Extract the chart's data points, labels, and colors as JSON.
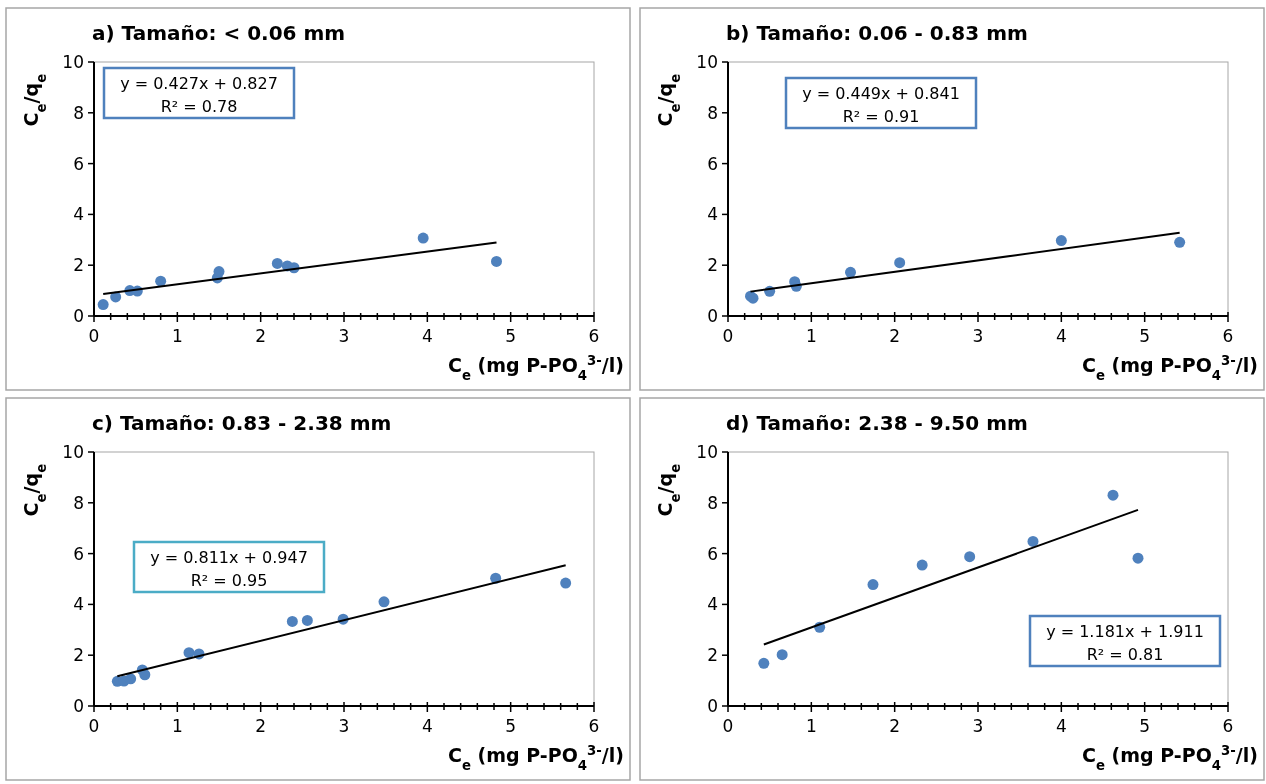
{
  "chart_data": [
    {
      "type": "scatter",
      "title": "a) Tamaño: < 0.06 mm",
      "xlabel": "C$_{e}$ (mg P-PO$_{4}$$^{3-}$/l)",
      "ylabel": "C$_{e}$/q$_{e}$",
      "grid": false,
      "xlim": [
        0,
        6
      ],
      "ylim": [
        0,
        10
      ],
      "yticks": [
        0,
        2,
        4,
        6,
        8,
        10
      ],
      "xticks": [
        0,
        {
          "value": 0.2,
          "label": null
        },
        {
          "value": 0.4,
          "label": null
        },
        {
          "value": 0.6,
          "label": null
        },
        {
          "value": 0.8,
          "label": null
        },
        1,
        {
          "value": 1.2,
          "label": null
        },
        {
          "value": 1.4,
          "label": null
        },
        {
          "value": 1.6,
          "label": null
        },
        {
          "value": 1.8,
          "label": null
        },
        2,
        {
          "value": 2.2,
          "label": null
        },
        {
          "value": 2.4,
          "label": null
        },
        {
          "value": 2.6,
          "label": null
        },
        {
          "value": 2.8,
          "label": null
        },
        3,
        {
          "value": 3.2,
          "label": null
        },
        {
          "value": 3.4,
          "label": null
        },
        {
          "value": 3.6,
          "label": null
        },
        {
          "value": 3.8,
          "label": null
        },
        4,
        {
          "value": 4.2,
          "label": null
        },
        {
          "value": 4.4,
          "label": null
        },
        {
          "value": 4.6,
          "label": null
        },
        {
          "value": 4.8,
          "label": null
        },
        5,
        {
          "value": 5.2,
          "label": null
        },
        {
          "value": 5.4,
          "label": null
        },
        {
          "value": 5.6,
          "label": null
        },
        {
          "value": 5.8,
          "label": null
        },
        6
      ],
      "annotations": [
        "y = 0.427x + 0.827",
        "R² = 0.78"
      ],
      "series": [
        {
          "marker": "circle",
          "color": "#4f81bd",
          "x": [
            0.11,
            0.26,
            0.43,
            0.52,
            0.8,
            1.48,
            1.5,
            2.2,
            2.32,
            2.4,
            3.95,
            4.83
          ],
          "values": [
            0.45,
            0.75,
            1.0,
            0.98,
            1.37,
            1.5,
            1.75,
            2.07,
            1.97,
            1.9,
            3.07,
            2.15
          ]
        },
        {
          "type": "line",
          "color": "#000000",
          "x": [
            0.11,
            4.83
          ],
          "values": [
            0.87,
            2.89
          ]
        }
      ]
    },
    {
      "type": "scatter",
      "title": "b) Tamaño: 0.06 - 0.83 mm",
      "xlabel": "C$_{e}$ (mg P-PO$_{4}$$^{3-}$/l)",
      "ylabel": "C$_{e}$/q$_{e}$",
      "grid": false,
      "xlim": [
        0,
        6
      ],
      "ylim": [
        0,
        10
      ],
      "yticks": [
        0,
        2,
        4,
        6,
        8,
        10
      ],
      "xticks": [
        0,
        {
          "value": 0.2,
          "label": null
        },
        {
          "value": 0.4,
          "label": null
        },
        {
          "value": 0.6,
          "label": null
        },
        {
          "value": 0.8,
          "label": null
        },
        1,
        {
          "value": 1.2,
          "label": null
        },
        {
          "value": 1.4,
          "label": null
        },
        {
          "value": 1.6,
          "label": null
        },
        {
          "value": 1.8,
          "label": null
        },
        2,
        {
          "value": 2.2,
          "label": null
        },
        {
          "value": 2.4,
          "label": null
        },
        {
          "value": 2.6,
          "label": null
        },
        {
          "value": 2.8,
          "label": null
        },
        3,
        {
          "value": 3.2,
          "label": null
        },
        {
          "value": 3.4,
          "label": null
        },
        {
          "value": 3.6,
          "label": null
        },
        {
          "value": 3.8,
          "label": null
        },
        4,
        {
          "value": 4.2,
          "label": null
        },
        {
          "value": 4.4,
          "label": null
        },
        {
          "value": 4.6,
          "label": null
        },
        {
          "value": 4.8,
          "label": null
        },
        5,
        {
          "value": 5.2,
          "label": null
        },
        {
          "value": 5.4,
          "label": null
        },
        {
          "value": 5.6,
          "label": null
        },
        {
          "value": 5.8,
          "label": null
        },
        6
      ],
      "annotations": [
        "y = 0.449x + 0.841",
        "R² = 0.91"
      ],
      "series": [
        {
          "marker": "circle",
          "color": "#4f81bd",
          "x": [
            0.27,
            0.3,
            0.5,
            0.8,
            0.82,
            1.47,
            2.06,
            4.0,
            5.42
          ],
          "values": [
            0.78,
            0.7,
            0.97,
            1.35,
            1.17,
            1.72,
            2.1,
            2.97,
            2.9
          ]
        },
        {
          "type": "line",
          "color": "#000000",
          "x": [
            0.27,
            5.42
          ],
          "values": [
            0.96,
            3.28
          ]
        }
      ]
    },
    {
      "type": "scatter",
      "title": "c) Tamaño: 0.83 - 2.38 mm",
      "xlabel": "C$_{e}$ (mg P-PO$_{4}$$^{3-}$/l)",
      "ylabel": "C$_{e}$/q$_{e}$",
      "grid": false,
      "xlim": [
        0,
        6
      ],
      "ylim": [
        0,
        10
      ],
      "yticks": [
        0,
        2,
        4,
        6,
        8,
        10
      ],
      "xticks": [
        0,
        {
          "value": 0.2,
          "label": null
        },
        {
          "value": 0.4,
          "label": null
        },
        {
          "value": 0.6,
          "label": null
        },
        {
          "value": 0.8,
          "label": null
        },
        1,
        {
          "value": 1.2,
          "label": null
        },
        {
          "value": 1.4,
          "label": null
        },
        {
          "value": 1.6,
          "label": null
        },
        {
          "value": 1.8,
          "label": null
        },
        2,
        {
          "value": 2.2,
          "label": null
        },
        {
          "value": 2.4,
          "label": null
        },
        {
          "value": 2.6,
          "label": null
        },
        {
          "value": 2.8,
          "label": null
        },
        3,
        {
          "value": 3.2,
          "label": null
        },
        {
          "value": 3.4,
          "label": null
        },
        {
          "value": 3.6,
          "label": null
        },
        {
          "value": 3.8,
          "label": null
        },
        4,
        {
          "value": 4.2,
          "label": null
        },
        {
          "value": 4.4,
          "label": null
        },
        {
          "value": 4.6,
          "label": null
        },
        {
          "value": 4.8,
          "label": null
        },
        5,
        {
          "value": 5.2,
          "label": null
        },
        {
          "value": 5.4,
          "label": null
        },
        {
          "value": 5.6,
          "label": null
        },
        {
          "value": 5.8,
          "label": null
        },
        6
      ],
      "annotations": [
        "y = 0.811x + 0.947",
        "R² = 0.95"
      ],
      "series": [
        {
          "marker": "circle",
          "color": "#4f81bd",
          "x": [
            0.28,
            0.36,
            0.44,
            0.58,
            0.61,
            1.14,
            1.26,
            2.38,
            2.56,
            2.99,
            3.48,
            4.82,
            5.66
          ],
          "values": [
            0.97,
            0.98,
            1.07,
            1.42,
            1.23,
            2.1,
            2.05,
            3.33,
            3.37,
            3.42,
            4.1,
            5.03,
            4.84
          ]
        },
        {
          "type": "line",
          "color": "#000000",
          "x": [
            0.28,
            5.66
          ],
          "values": [
            1.17,
            5.54
          ]
        }
      ]
    },
    {
      "type": "scatter",
      "title": "d) Tamaño: 2.38 - 9.50 mm",
      "xlabel": "C$_{e}$ (mg P-PO$_{4}$$^{3-}$/l)",
      "ylabel": "C$_{e}$/q$_{e}$",
      "grid": false,
      "xlim": [
        0,
        6
      ],
      "ylim": [
        0,
        10
      ],
      "yticks": [
        0,
        2,
        4,
        6,
        8,
        10
      ],
      "xticks": [
        0,
        {
          "value": 0.2,
          "label": null
        },
        {
          "value": 0.4,
          "label": null
        },
        {
          "value": 0.6,
          "label": null
        },
        {
          "value": 0.8,
          "label": null
        },
        1,
        {
          "value": 1.2,
          "label": null
        },
        {
          "value": 1.4,
          "label": null
        },
        {
          "value": 1.6,
          "label": null
        },
        {
          "value": 1.8,
          "label": null
        },
        2,
        {
          "value": 2.2,
          "label": null
        },
        {
          "value": 2.4,
          "label": null
        },
        {
          "value": 2.6,
          "label": null
        },
        {
          "value": 2.8,
          "label": null
        },
        3,
        {
          "value": 3.2,
          "label": null
        },
        {
          "value": 3.4,
          "label": null
        },
        {
          "value": 3.6,
          "label": null
        },
        {
          "value": 3.8,
          "label": null
        },
        4,
        {
          "value": 4.2,
          "label": null
        },
        {
          "value": 4.4,
          "label": null
        },
        {
          "value": 4.6,
          "label": null
        },
        {
          "value": 4.8,
          "label": null
        },
        5,
        {
          "value": 5.2,
          "label": null
        },
        {
          "value": 5.4,
          "label": null
        },
        {
          "value": 5.6,
          "label": null
        },
        {
          "value": 5.8,
          "label": null
        },
        6
      ],
      "annotations": [
        "y = 1.181x + 1.911",
        "R² = 0.81"
      ],
      "series": [
        {
          "marker": "circle",
          "color": "#4f81bd",
          "x": [
            0.43,
            0.65,
            1.1,
            1.74,
            2.33,
            2.9,
            3.66,
            4.62,
            4.92
          ],
          "values": [
            1.68,
            2.02,
            3.1,
            4.78,
            5.55,
            5.88,
            6.48,
            8.3,
            5.82
          ]
        },
        {
          "type": "line",
          "color": "#000000",
          "x": [
            0.43,
            4.92
          ],
          "values": [
            2.42,
            7.72
          ]
        }
      ]
    }
  ]
}
